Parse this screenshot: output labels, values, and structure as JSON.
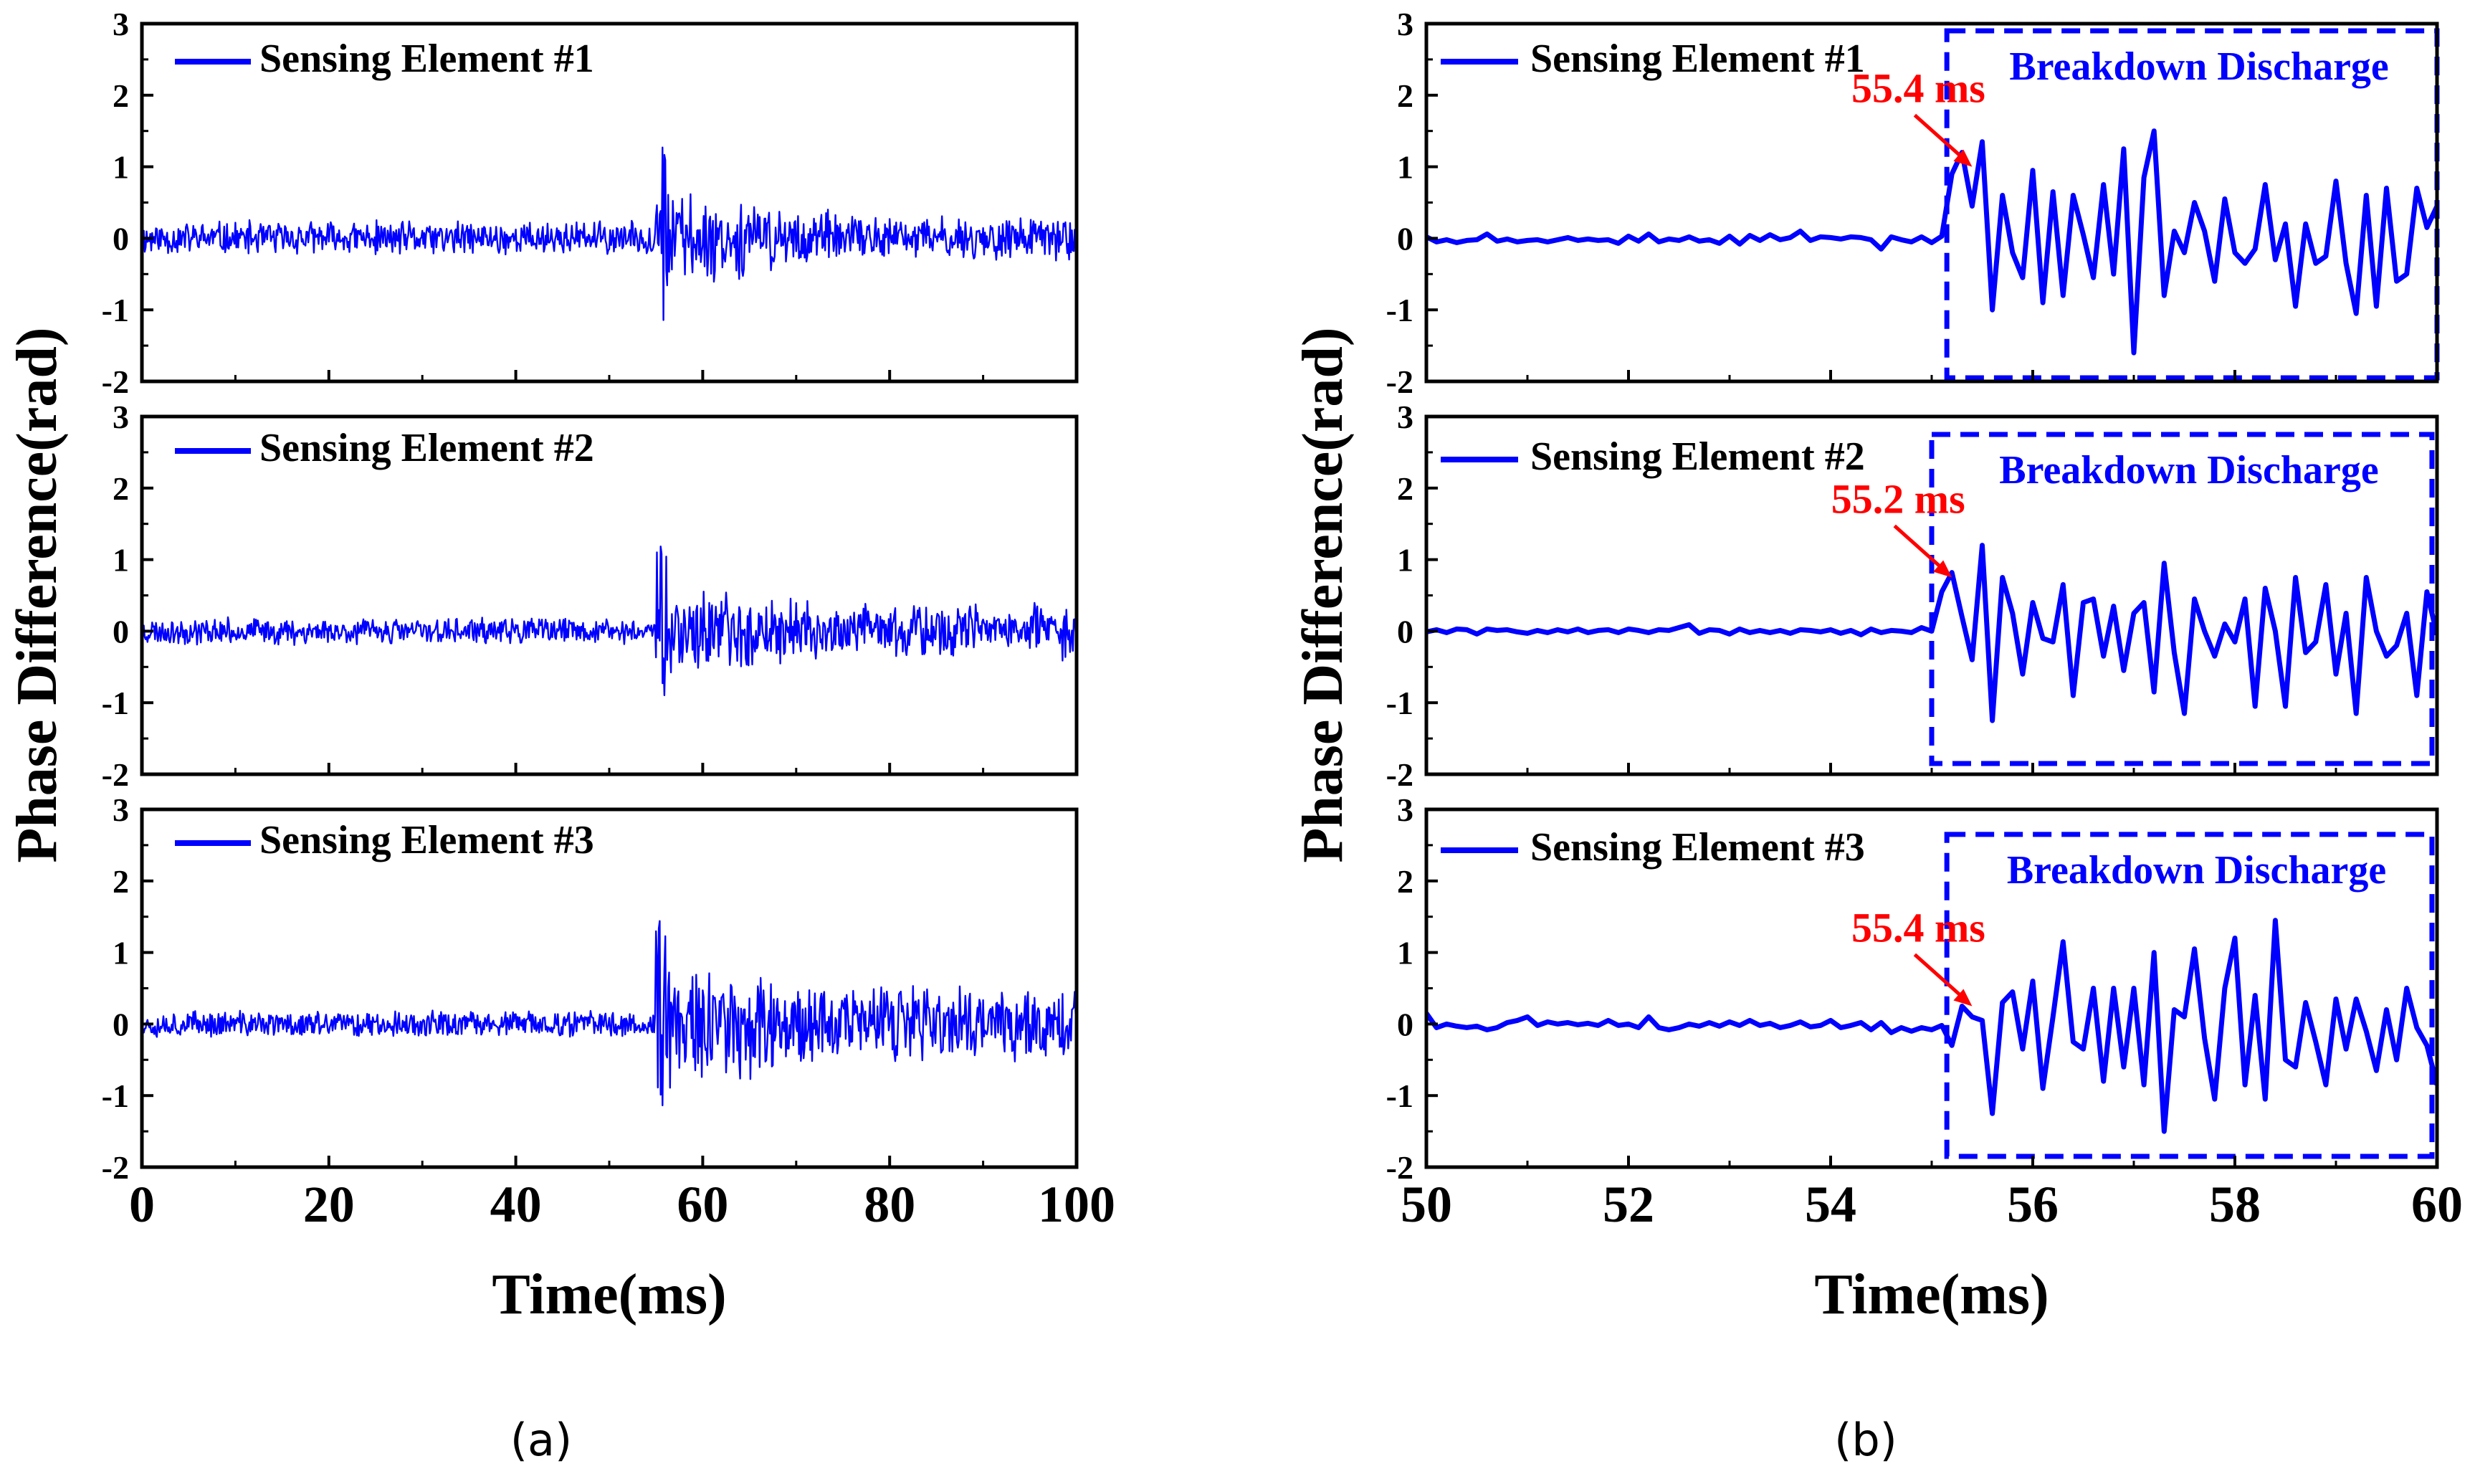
{
  "figure": {
    "caption_a": "(a)",
    "caption_b": "(b)"
  },
  "chart_data": [
    {
      "id": "a",
      "type": "line",
      "ylabel": "Phase Difference(rad)",
      "xlabel": "Time(ms)",
      "xlim": [
        0,
        100
      ],
      "ylim": [
        -2,
        3
      ],
      "xticks": [
        0,
        20,
        40,
        60,
        80,
        100
      ],
      "xtick_labels": [
        "0",
        "20",
        "40",
        "60",
        "80",
        "100"
      ],
      "yticks": [
        -2,
        -1,
        0,
        1,
        2,
        3
      ],
      "ytick_labels": [
        "-2",
        "-1",
        "0",
        "1",
        "2",
        "3"
      ],
      "color": "#0000ff",
      "panels": [
        {
          "legend": "Sensing Element #1",
          "noise": {
            "onset": 55.0,
            "pre_amplitude": 0.22,
            "burst_peak": 1.3,
            "burst_min": -1.6,
            "post_amplitude": 0.6,
            "late_amplitude": 0.28,
            "step": 0.1,
            "seed": 11
          }
        },
        {
          "legend": "Sensing Element #2",
          "noise": {
            "onset": 55.0,
            "pre_amplitude": 0.17,
            "burst_peak": 1.2,
            "burst_min": -0.95,
            "post_amplitude": 0.55,
            "late_amplitude": 0.35,
            "step": 0.1,
            "seed": 23
          }
        },
        {
          "legend": "Sensing Element #3",
          "noise": {
            "onset": 55.0,
            "pre_amplitude": 0.17,
            "burst_peak": 1.45,
            "burst_min": -1.25,
            "post_amplitude": 0.85,
            "late_amplitude": 0.5,
            "step": 0.1,
            "seed": 37
          }
        }
      ]
    },
    {
      "id": "b",
      "type": "line",
      "ylabel": "Phase Difference(rad)",
      "xlabel": "Time(ms)",
      "xlim": [
        50,
        60
      ],
      "ylim": [
        -2,
        3
      ],
      "xticks": [
        50,
        52,
        54,
        56,
        58,
        60
      ],
      "xtick_labels": [
        "50",
        "52",
        "54",
        "56",
        "58",
        "60"
      ],
      "yticks": [
        -2,
        -1,
        0,
        1,
        2,
        3
      ],
      "ytick_labels": [
        "-2",
        "-1",
        "0",
        "1",
        "2",
        "3"
      ],
      "color": "#0000ff",
      "annotation_color": "#ff0000",
      "panels": [
        {
          "legend": "Sensing Element #1",
          "box_label": "Breakdown Discharge",
          "box_x": [
            55.15,
            60.0
          ],
          "box_y": [
            -1.95,
            2.9
          ],
          "onset_label": "55.4 ms",
          "onset_x": 55.4,
          "onset_y": 1.0,
          "x": [
            50.0,
            50.1,
            50.2,
            50.3,
            50.4,
            50.5,
            50.6,
            50.7,
            50.8,
            50.9,
            51.0,
            51.1,
            51.2,
            51.3,
            51.4,
            51.5,
            51.6,
            51.7,
            51.8,
            51.9,
            52.0,
            52.1,
            52.2,
            52.3,
            52.4,
            52.5,
            52.6,
            52.7,
            52.8,
            52.9,
            53.0,
            53.1,
            53.2,
            53.3,
            53.4,
            53.5,
            53.6,
            53.7,
            53.8,
            53.9,
            54.0,
            54.1,
            54.2,
            54.3,
            54.4,
            54.5,
            54.6,
            54.7,
            54.8,
            54.9,
            55.0,
            55.1,
            55.2,
            55.3,
            55.4,
            55.5,
            55.6,
            55.7,
            55.8,
            55.9,
            56.0,
            56.1,
            56.2,
            56.3,
            56.4,
            56.5,
            56.6,
            56.7,
            56.8,
            56.9,
            57.0,
            57.1,
            57.2,
            57.3,
            57.4,
            57.5,
            57.6,
            57.7,
            57.8,
            57.9,
            58.0,
            58.1,
            58.2,
            58.3,
            58.4,
            58.5,
            58.6,
            58.7,
            58.8,
            58.9,
            59.0,
            59.1,
            59.2,
            59.3,
            59.4,
            59.5,
            59.6,
            59.7,
            59.8,
            59.9,
            60.0
          ],
          "y": [
            0.02,
            -0.05,
            -0.02,
            -0.06,
            -0.03,
            -0.02,
            0.06,
            -0.04,
            -0.01,
            -0.05,
            -0.03,
            -0.02,
            -0.05,
            -0.02,
            0.01,
            -0.03,
            -0.01,
            -0.03,
            -0.02,
            -0.07,
            0.03,
            -0.04,
            0.06,
            -0.05,
            -0.01,
            -0.03,
            0.02,
            -0.04,
            -0.02,
            -0.07,
            0.03,
            -0.08,
            0.04,
            -0.03,
            0.05,
            -0.02,
            0.01,
            0.1,
            -0.03,
            0.02,
            0.01,
            -0.01,
            0.02,
            0.01,
            -0.02,
            -0.15,
            0.02,
            -0.02,
            -0.05,
            0.02,
            -0.06,
            0.03,
            0.9,
            1.2,
            0.45,
            1.35,
            -1.0,
            0.6,
            -0.2,
            -0.55,
            0.95,
            -0.9,
            0.65,
            -0.8,
            0.6,
            0.05,
            -0.55,
            0.75,
            -0.5,
            1.25,
            -1.6,
            0.85,
            1.5,
            -0.8,
            0.1,
            -0.2,
            0.5,
            0.1,
            -0.6,
            0.55,
            -0.2,
            -0.35,
            -0.15,
            0.75,
            -0.3,
            0.2,
            -0.95,
            0.2,
            -0.35,
            -0.25,
            0.8,
            -0.35,
            -1.05,
            0.6,
            -0.95,
            0.7,
            -0.6,
            -0.5,
            0.7,
            0.15,
            0.45
          ]
        },
        {
          "legend": "Sensing Element #2",
          "box_label": "Breakdown Discharge",
          "box_x": [
            55.0,
            59.95
          ],
          "box_y": [
            -1.85,
            2.75
          ],
          "onset_label": "55.2 ms",
          "onset_x": 55.2,
          "onset_y": 0.75,
          "x": [
            50.0,
            50.1,
            50.2,
            50.3,
            50.4,
            50.5,
            50.6,
            50.7,
            50.8,
            50.9,
            51.0,
            51.1,
            51.2,
            51.3,
            51.4,
            51.5,
            51.6,
            51.7,
            51.8,
            51.9,
            52.0,
            52.1,
            52.2,
            52.3,
            52.4,
            52.5,
            52.6,
            52.7,
            52.8,
            52.9,
            53.0,
            53.1,
            53.2,
            53.3,
            53.4,
            53.5,
            53.6,
            53.7,
            53.8,
            53.9,
            54.0,
            54.1,
            54.2,
            54.3,
            54.4,
            54.5,
            54.6,
            54.7,
            54.8,
            54.9,
            55.0,
            55.1,
            55.2,
            55.3,
            55.4,
            55.5,
            55.6,
            55.7,
            55.8,
            55.9,
            56.0,
            56.1,
            56.2,
            56.3,
            56.4,
            56.5,
            56.6,
            56.7,
            56.8,
            56.9,
            57.0,
            57.1,
            57.2,
            57.3,
            57.4,
            57.5,
            57.6,
            57.7,
            57.8,
            57.9,
            58.0,
            58.1,
            58.2,
            58.3,
            58.4,
            58.5,
            58.6,
            58.7,
            58.8,
            58.9,
            59.0,
            59.1,
            59.2,
            59.3,
            59.4,
            59.5,
            59.6,
            59.7,
            59.8,
            59.9,
            60.0
          ],
          "y": [
            -0.01,
            0.02,
            -0.02,
            0.03,
            0.02,
            -0.04,
            0.03,
            0.01,
            0.02,
            -0.01,
            -0.03,
            0.01,
            -0.02,
            0.02,
            -0.01,
            0.03,
            -0.02,
            0.01,
            0.02,
            -0.02,
            0.03,
            0.01,
            -0.02,
            0.02,
            0.01,
            0.05,
            0.09,
            -0.03,
            0.02,
            0.01,
            -0.04,
            0.03,
            -0.02,
            0.01,
            -0.02,
            0.01,
            -0.03,
            0.02,
            0.01,
            -0.01,
            0.02,
            -0.03,
            0.01,
            -0.05,
            0.03,
            -0.02,
            0.01,
            0.0,
            -0.02,
            0.05,
            0.0,
            0.55,
            0.82,
            0.2,
            -0.4,
            1.2,
            -1.25,
            0.75,
            0.25,
            -0.6,
            0.4,
            -0.1,
            -0.15,
            0.65,
            -0.9,
            0.4,
            0.45,
            -0.35,
            0.35,
            -0.55,
            0.25,
            0.4,
            -0.85,
            0.95,
            -0.3,
            -1.15,
            0.45,
            0.0,
            -0.35,
            0.1,
            -0.15,
            0.45,
            -1.05,
            0.6,
            0.0,
            -1.05,
            0.75,
            -0.3,
            -0.15,
            0.65,
            -0.6,
            0.25,
            -1.15,
            0.75,
            0.0,
            -0.35,
            -0.2,
            0.25,
            -0.9,
            0.55,
            -0.05
          ]
        },
        {
          "legend": "Sensing Element #3",
          "box_label": "Breakdown Discharge",
          "box_x": [
            55.15,
            59.95
          ],
          "box_y": [
            -1.85,
            2.65
          ],
          "onset_label": "55.4 ms",
          "onset_x": 55.4,
          "onset_y": 0.25,
          "x": [
            50.0,
            50.1,
            50.2,
            50.3,
            50.4,
            50.5,
            50.6,
            50.7,
            50.8,
            50.9,
            51.0,
            51.1,
            51.2,
            51.3,
            51.4,
            51.5,
            51.6,
            51.7,
            51.8,
            51.9,
            52.0,
            52.1,
            52.2,
            52.3,
            52.4,
            52.5,
            52.6,
            52.7,
            52.8,
            52.9,
            53.0,
            53.1,
            53.2,
            53.3,
            53.4,
            53.5,
            53.6,
            53.7,
            53.8,
            53.9,
            54.0,
            54.1,
            54.2,
            54.3,
            54.4,
            54.5,
            54.6,
            54.7,
            54.8,
            54.9,
            55.0,
            55.1,
            55.2,
            55.3,
            55.4,
            55.5,
            55.6,
            55.7,
            55.8,
            55.9,
            56.0,
            56.1,
            56.2,
            56.3,
            56.4,
            56.5,
            56.6,
            56.7,
            56.8,
            56.9,
            57.0,
            57.1,
            57.2,
            57.3,
            57.4,
            57.5,
            57.6,
            57.7,
            57.8,
            57.9,
            58.0,
            58.1,
            58.2,
            58.3,
            58.4,
            58.5,
            58.6,
            58.7,
            58.8,
            58.9,
            59.0,
            59.1,
            59.2,
            59.3,
            59.4,
            59.5,
            59.6,
            59.7,
            59.8,
            59.9,
            60.0
          ],
          "y": [
            0.15,
            -0.05,
            0.0,
            -0.03,
            -0.05,
            -0.03,
            -0.08,
            -0.05,
            0.02,
            0.05,
            0.1,
            -0.02,
            0.03,
            0.0,
            0.02,
            -0.01,
            0.01,
            -0.02,
            0.05,
            -0.02,
            0.0,
            -0.05,
            0.1,
            -0.05,
            -0.08,
            -0.05,
            0.0,
            -0.03,
            0.02,
            -0.03,
            0.03,
            -0.02,
            0.05,
            -0.02,
            0.01,
            -0.05,
            -0.02,
            0.03,
            -0.04,
            -0.02,
            0.05,
            -0.05,
            -0.02,
            0.02,
            -0.08,
            0.02,
            -0.12,
            -0.05,
            -0.1,
            -0.05,
            -0.08,
            -0.02,
            -0.3,
            0.25,
            0.1,
            0.05,
            -1.25,
            0.3,
            0.45,
            -0.35,
            0.6,
            -0.9,
            0.1,
            1.15,
            -0.25,
            -0.35,
            0.5,
            -0.8,
            0.5,
            -0.6,
            0.5,
            -0.85,
            1.0,
            -1.5,
            0.2,
            0.1,
            1.05,
            -0.2,
            -1.05,
            0.5,
            1.2,
            -0.85,
            0.4,
            -1.05,
            1.45,
            -0.5,
            -0.6,
            0.3,
            -0.25,
            -0.85,
            0.35,
            -0.35,
            0.35,
            -0.1,
            -0.65,
            0.2,
            -0.5,
            0.5,
            -0.05,
            -0.3,
            -0.85
          ]
        }
      ]
    }
  ]
}
